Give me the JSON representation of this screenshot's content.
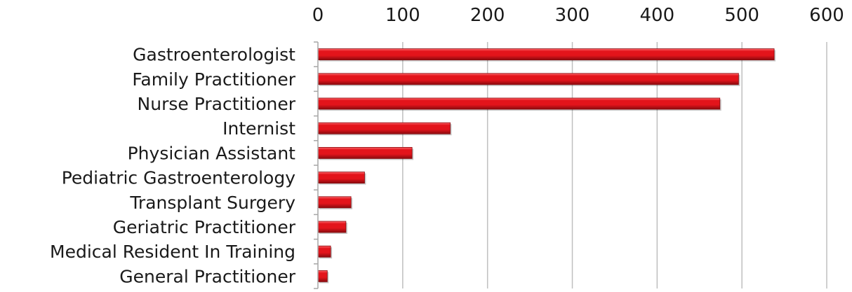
{
  "chart_data": {
    "type": "bar",
    "orientation": "horizontal",
    "categories": [
      "Gastroenterologist",
      "Family Practitioner",
      "Nurse Practitioner",
      "Internist",
      "Physician Assistant",
      "Pediatric Gastroenterology",
      "Transplant Surgery",
      "Geriatric Practitioner",
      "Medical Resident In Training",
      "General Practitioner"
    ],
    "values": [
      538,
      496,
      474,
      156,
      111,
      55,
      39,
      33,
      15,
      11
    ],
    "xlim": [
      0,
      600
    ],
    "x_ticks": [
      "0",
      "100",
      "200",
      "300",
      "400",
      "500",
      "600"
    ],
    "x_axis_position": "top",
    "grid": "vertical",
    "legend": "none",
    "bar_color": "#e3141b",
    "bar_highlight_color": "#ff6a6e",
    "bar_shadow_color": "#8a0a0e"
  }
}
